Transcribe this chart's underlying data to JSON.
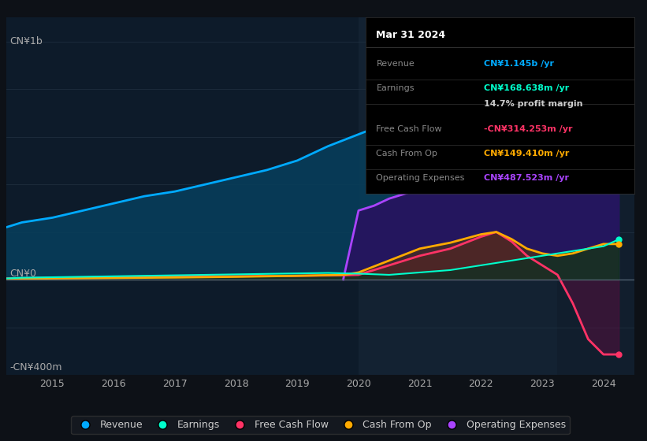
{
  "bg_color": "#0d1117",
  "plot_bg_color": "#0d1b2a",
  "y_label_top": "CN¥1b",
  "y_label_bottom": "-CN¥400m",
  "y_label_zero": "CN¥0",
  "x_ticks": [
    2015,
    2016,
    2017,
    2018,
    2019,
    2020,
    2021,
    2022,
    2023,
    2024
  ],
  "highlight_x_start": 2020.0,
  "highlight_x_end": 2023.25,
  "highlight_color": "#1a2a3a",
  "tooltip": {
    "title": "Mar 31 2024",
    "rows": [
      {
        "label": "Revenue",
        "value": "CN¥1.145b /yr",
        "value_color": "#00aaff"
      },
      {
        "label": "Earnings",
        "value": "CN¥168.638m /yr",
        "value_color": "#00ffcc"
      },
      {
        "label": "",
        "value": "14.7% profit margin",
        "value_color": "#cccccc"
      },
      {
        "label": "Free Cash Flow",
        "value": "-CN¥314.253m /yr",
        "value_color": "#ff3366"
      },
      {
        "label": "Cash From Op",
        "value": "CN¥149.410m /yr",
        "value_color": "#ffaa00"
      },
      {
        "label": "Operating Expenses",
        "value": "CN¥487.523m /yr",
        "value_color": "#aa44ff"
      }
    ]
  },
  "series": {
    "revenue": {
      "color": "#00aaff",
      "fill_color": "#073d5a",
      "label": "Revenue",
      "data_x": [
        2014.25,
        2014.5,
        2015.0,
        2015.5,
        2016.0,
        2016.5,
        2017.0,
        2017.5,
        2018.0,
        2018.5,
        2019.0,
        2019.5,
        2020.0,
        2020.5,
        2021.0,
        2021.5,
        2022.0,
        2022.25,
        2022.5,
        2022.75,
        2023.0,
        2023.25,
        2023.5,
        2023.75,
        2024.0,
        2024.25
      ],
      "data_y": [
        220,
        240,
        260,
        290,
        320,
        350,
        370,
        400,
        430,
        460,
        500,
        560,
        610,
        660,
        720,
        800,
        880,
        950,
        1000,
        980,
        950,
        940,
        960,
        990,
        1020,
        1145
      ]
    },
    "earnings": {
      "color": "#00ffcc",
      "fill_color": "#003322",
      "label": "Earnings",
      "data_x": [
        2014.25,
        2014.5,
        2015.0,
        2015.5,
        2016.0,
        2016.5,
        2017.0,
        2017.5,
        2018.0,
        2018.5,
        2019.0,
        2019.5,
        2020.0,
        2020.5,
        2021.0,
        2021.5,
        2022.0,
        2022.5,
        2023.0,
        2023.5,
        2024.0,
        2024.25
      ],
      "data_y": [
        5,
        8,
        10,
        12,
        14,
        16,
        18,
        20,
        22,
        24,
        26,
        28,
        25,
        20,
        30,
        40,
        60,
        80,
        100,
        120,
        140,
        168.638
      ]
    },
    "free_cash_flow": {
      "color": "#ff3366",
      "fill_color": "#5a1040",
      "label": "Free Cash Flow",
      "data_x": [
        2014.25,
        2015.0,
        2016.0,
        2017.0,
        2018.0,
        2019.0,
        2019.75,
        2020.0,
        2020.5,
        2021.0,
        2021.5,
        2022.0,
        2022.25,
        2022.5,
        2022.75,
        2023.0,
        2023.25,
        2023.5,
        2023.75,
        2024.0,
        2024.25
      ],
      "data_y": [
        5,
        8,
        10,
        12,
        14,
        16,
        18,
        20,
        60,
        100,
        130,
        180,
        200,
        160,
        100,
        60,
        20,
        -100,
        -250,
        -314.253,
        -314.253
      ]
    },
    "cash_from_op": {
      "color": "#ffaa00",
      "fill_color": "#5a3a00",
      "label": "Cash From Op",
      "data_x": [
        2014.25,
        2015.0,
        2016.0,
        2017.0,
        2018.0,
        2019.0,
        2019.75,
        2020.0,
        2020.5,
        2021.0,
        2021.5,
        2022.0,
        2022.25,
        2022.5,
        2022.75,
        2023.0,
        2023.25,
        2023.5,
        2023.75,
        2024.0,
        2024.25
      ],
      "data_y": [
        3,
        5,
        7,
        9,
        12,
        16,
        20,
        30,
        80,
        130,
        155,
        190,
        200,
        170,
        130,
        110,
        100,
        110,
        130,
        149.41,
        149.41
      ]
    },
    "operating_expenses": {
      "color": "#aa44ff",
      "fill_color": "#2a1060",
      "label": "Operating Expenses",
      "data_x": [
        2019.75,
        2020.0,
        2020.25,
        2020.5,
        2020.75,
        2021.0,
        2021.5,
        2022.0,
        2022.25,
        2022.5,
        2022.75,
        2023.0,
        2023.25,
        2023.5,
        2023.75,
        2024.0,
        2024.25
      ],
      "data_y": [
        0,
        290,
        310,
        340,
        360,
        380,
        400,
        430,
        480,
        440,
        400,
        380,
        370,
        400,
        430,
        460,
        487.523
      ]
    }
  },
  "ylim": [
    -400,
    1100
  ],
  "xlim": [
    2014.25,
    2024.5
  ],
  "legend_items": [
    {
      "label": "Revenue",
      "color": "#00aaff"
    },
    {
      "label": "Earnings",
      "color": "#00ffcc"
    },
    {
      "label": "Free Cash Flow",
      "color": "#ff3366"
    },
    {
      "label": "Cash From Op",
      "color": "#ffaa00"
    },
    {
      "label": "Operating Expenses",
      "color": "#aa44ff"
    }
  ]
}
